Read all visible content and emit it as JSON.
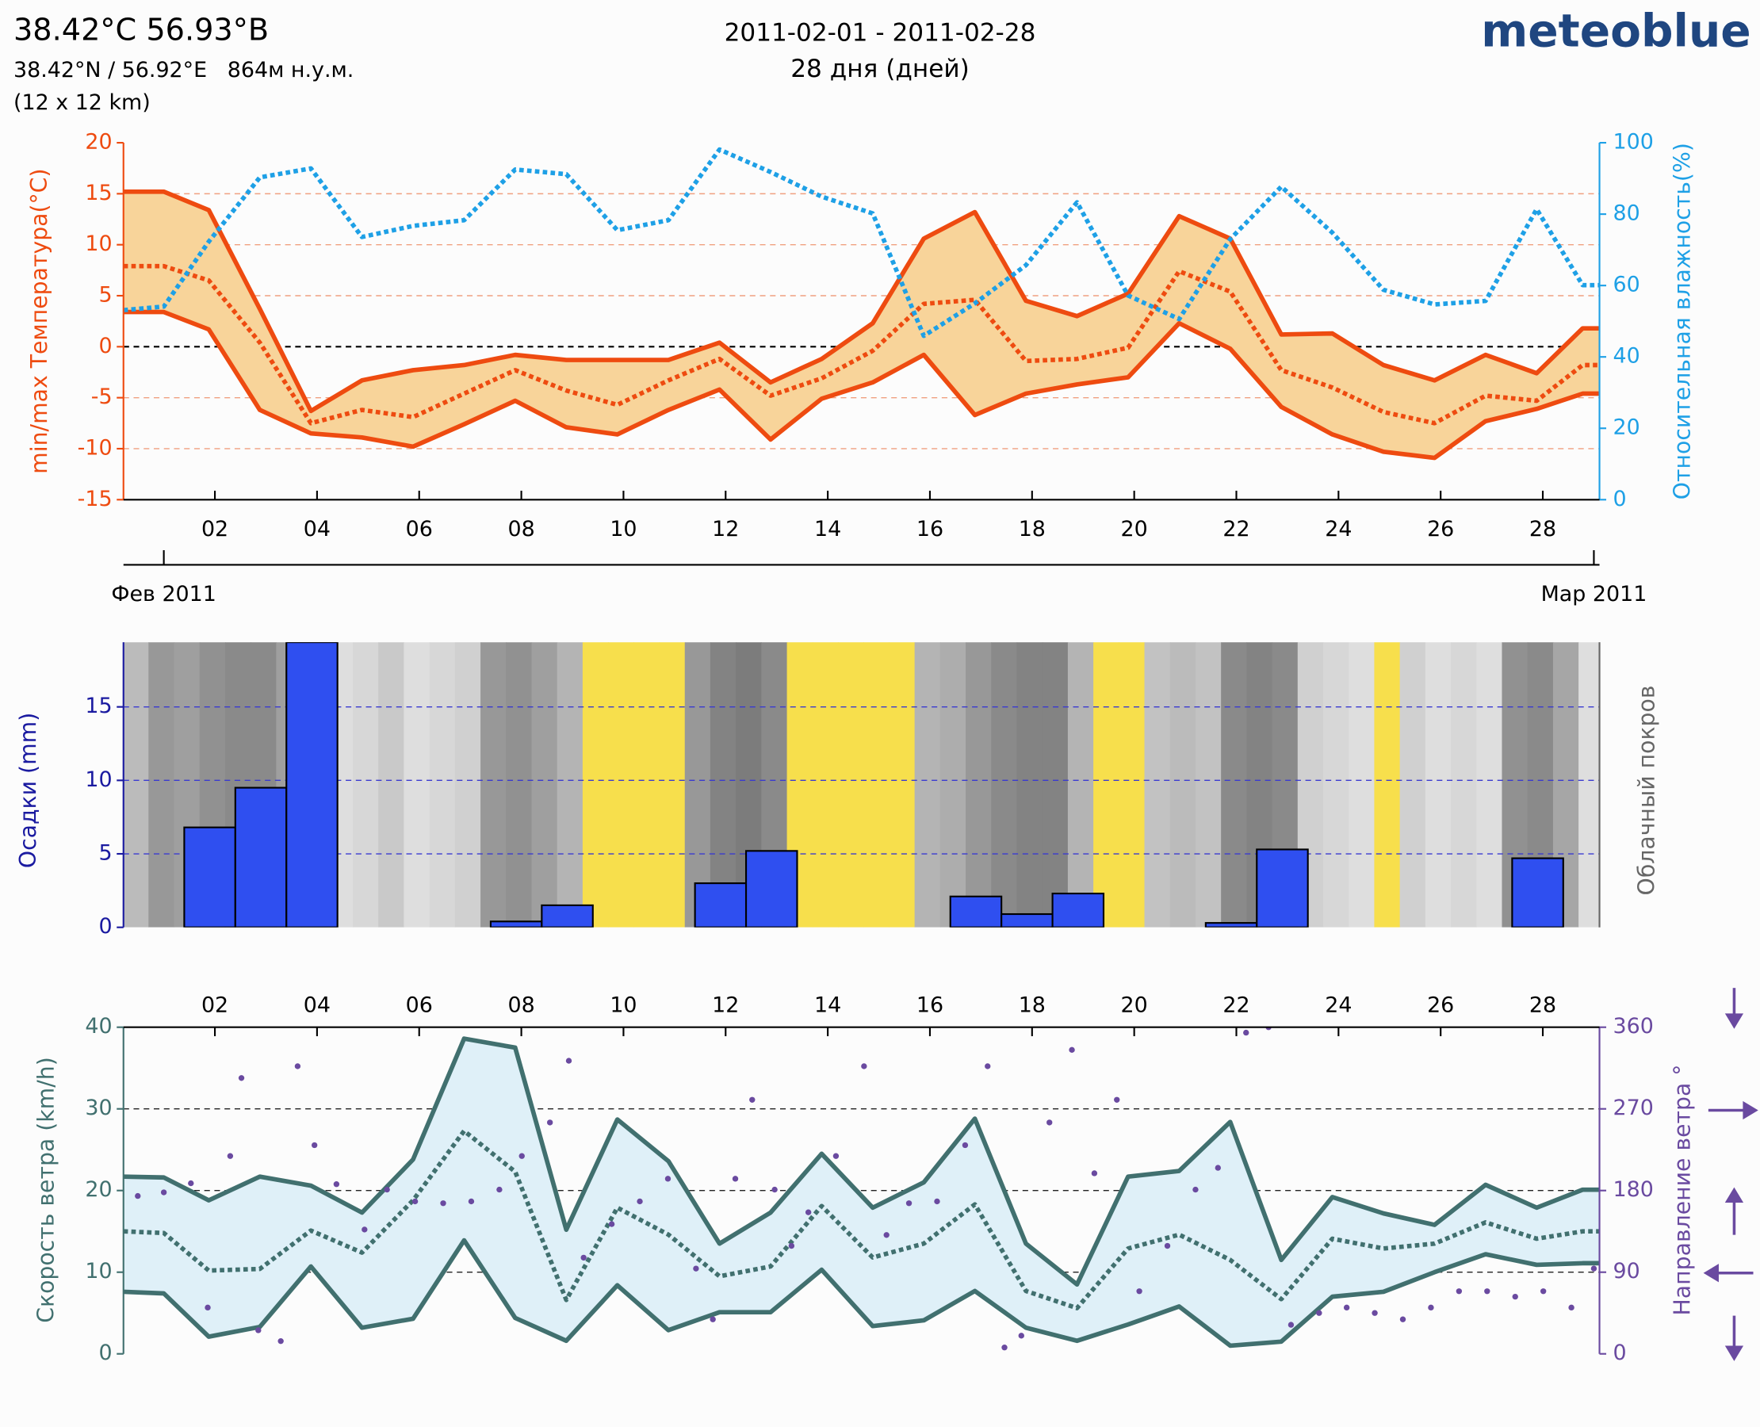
{
  "header": {
    "location": "38.42°C 56.93°B",
    "coordinates": "38.42°N / 56.92°E   864м н.у.м.",
    "resolution": "(12 x 12 km)",
    "period": "2011-02-01 - 2011-02-28",
    "duration": "28 дня (дней)",
    "brand": "meteoblue"
  },
  "chart_data": [
    {
      "type": "line",
      "ylabel": "min/max Температура(°C)",
      "y2label": "Относительная влажность(%)",
      "x": [
        0.21,
        1,
        1.88,
        2.88,
        3.88,
        4.88,
        5.88,
        6.88,
        7.88,
        8.88,
        9.88,
        10.88,
        11.88,
        12.88,
        13.88,
        14.88,
        15.88,
        16.88,
        17.88,
        18.88,
        19.88,
        20.88,
        21.88,
        22.88,
        23.88,
        24.88,
        25.88,
        26.88,
        27.88,
        28.78,
        29.11
      ],
      "xlim": [
        0.21,
        29.11
      ],
      "xticks": [
        {
          "value": 2,
          "label": "02"
        },
        {
          "value": 4,
          "label": "04"
        },
        {
          "value": 6,
          "label": "06"
        },
        {
          "value": 8,
          "label": "08"
        },
        10,
        12,
        14,
        16,
        18,
        20,
        22,
        24,
        26,
        28
      ],
      "month_ticks": [
        {
          "value": 1,
          "label": "Фев 2011"
        },
        {
          "value": 29,
          "label": "Мар 2011"
        }
      ],
      "ylim": [
        -15,
        20
      ],
      "yticks": [
        -15,
        -10,
        -5,
        0,
        5,
        10,
        15,
        20
      ],
      "y2lim": [
        0,
        100
      ],
      "y2ticks": [
        0,
        20,
        40,
        60,
        80,
        100
      ],
      "grid": true,
      "grid_color": "#f0a080",
      "fill_between": "#f8d49a",
      "series": [
        {
          "color": "#ee4b10",
          "style": "solid",
          "values": [
            15.2,
            15.2,
            13.4,
            3.7,
            -6.3,
            -3.3,
            -2.3,
            -1.8,
            -0.8,
            -1.3,
            -1.3,
            -1.3,
            0.4,
            -3.5,
            -1.2,
            2.3,
            10.6,
            13.2,
            4.5,
            3,
            5.2,
            12.8,
            10.6,
            1.2,
            1.3,
            -1.8,
            -3.3,
            -0.8,
            -2.6,
            1.8,
            1.8
          ]
        },
        {
          "color": "#ee4b10",
          "style": "solid",
          "values": [
            3.4,
            3.4,
            1.7,
            -6.2,
            -8.5,
            -8.9,
            -9.8,
            -7.6,
            -5.3,
            -7.9,
            -8.6,
            -6.2,
            -4.2,
            -9.1,
            -5.1,
            -3.5,
            -0.8,
            -6.7,
            -4.6,
            -3.7,
            -3,
            2.3,
            -0.2,
            -5.9,
            -8.6,
            -10.3,
            -10.9,
            -7.3,
            -6.1,
            -4.6,
            -4.6
          ]
        },
        {
          "color": "#ee4b10",
          "style": "dotted",
          "values": [
            7.9,
            7.9,
            6.5,
            0.4,
            -7.5,
            -6.2,
            -6.9,
            -4.6,
            -2.3,
            -4.3,
            -5.7,
            -3.3,
            -1.2,
            -4.8,
            -3.1,
            -0.4,
            4.2,
            4.6,
            -1.4,
            -1.2,
            -0.1,
            7.4,
            5.4,
            -2.3,
            -4,
            -6.4,
            -7.5,
            -4.8,
            -5.3,
            -1.8,
            -1.8
          ]
        },
        {
          "color": "#1ea0e6",
          "style": "dotted",
          "axis": "y2",
          "values": [
            53.1,
            54.1,
            72.3,
            90.3,
            92.8,
            73.6,
            76.7,
            78.3,
            92.5,
            91.2,
            75.5,
            78.3,
            98.1,
            91.8,
            84.9,
            80.2,
            45.9,
            55,
            65.7,
            83.3,
            57.2,
            50.6,
            73,
            87.7,
            74.8,
            58.8,
            54.7,
            55.7,
            81.4,
            60.1,
            60.1
          ]
        }
      ]
    },
    {
      "type": "histogram",
      "ylabel": "Осадки (mm)",
      "y2label": "Облачный покров",
      "bins": [
        0.4,
        1.4,
        2.4,
        3.4,
        4.4,
        5.4,
        6.4,
        7.4,
        8.4,
        9.4,
        10.4,
        11.4,
        12.4,
        13.4,
        14.4,
        15.4,
        16.4,
        17.4,
        18.4,
        19.4,
        20.4,
        21.4,
        22.4,
        23.4,
        24.4,
        25.4,
        26.4,
        27.4,
        28.4
      ],
      "values": [
        0,
        6.8,
        9.5,
        19.4,
        0,
        0,
        0,
        0.4,
        1.5,
        0,
        0,
        3,
        5.2,
        0,
        0,
        0,
        2.1,
        0.9,
        2.3,
        0,
        0,
        0.3,
        5.3,
        0,
        0,
        0,
        0,
        4.7
      ],
      "color": "#2f4ff0",
      "xlim": [
        0.21,
        29.11
      ],
      "ylim": [
        0,
        19.4
      ],
      "yticks": [
        0,
        5,
        10,
        15
      ],
      "grid": true,
      "grid_color": "#3a3ad0",
      "cloud_cover": {
        "bins": [
          0.2,
          0.7,
          1.2,
          1.7,
          2.2,
          2.7,
          3.2,
          3.7,
          4.2,
          4.7,
          5.2,
          5.7,
          6.2,
          6.7,
          7.2,
          7.7,
          8.2,
          8.7,
          9.2,
          9.7,
          10.2,
          10.7,
          11.2,
          11.7,
          12.2,
          12.7,
          13.2,
          13.7,
          14.2,
          14.7,
          15.2,
          15.7,
          16.2,
          16.7,
          17.2,
          17.7,
          18.2,
          18.7,
          19.2,
          19.7,
          20.2,
          20.7,
          21.2,
          21.7,
          22.2,
          22.7,
          23.2,
          23.7,
          24.2,
          24.7,
          25.2,
          25.7,
          26.2,
          26.7,
          27.2,
          27.7,
          28.2,
          28.7,
          29.2
        ],
        "values": [
          35,
          60,
          55,
          65,
          70,
          70,
          55,
          40,
          10,
          15,
          25,
          10,
          15,
          20,
          60,
          65,
          55,
          40,
          0,
          0,
          0,
          0,
          60,
          75,
          80,
          70,
          0,
          0,
          0,
          0,
          5,
          40,
          45,
          60,
          70,
          75,
          75,
          40,
          5,
          5,
          30,
          35,
          30,
          70,
          75,
          70,
          20,
          15,
          10,
          5,
          20,
          10,
          15,
          10,
          65,
          70,
          50,
          10
        ],
        "clear_color": "#f7df4c"
      }
    },
    {
      "type": "line",
      "ylabel": "Скорость ветра (km/h)",
      "y2label": "Направление ветра °",
      "x": [
        0.21,
        1,
        1.88,
        2.88,
        3.88,
        4.88,
        5.88,
        6.88,
        7.88,
        8.88,
        9.88,
        10.88,
        11.88,
        12.88,
        13.88,
        14.88,
        15.88,
        16.88,
        17.88,
        18.88,
        19.88,
        20.88,
        21.88,
        22.88,
        23.88,
        24.88,
        25.88,
        26.88,
        27.88,
        28.78,
        29.11
      ],
      "xlim": [
        0.21,
        29.11
      ],
      "xticks": [
        {
          "value": 2,
          "label": "02"
        },
        {
          "value": 4,
          "label": "04"
        },
        {
          "value": 6,
          "label": "06"
        },
        {
          "value": 8,
          "label": "08"
        },
        10,
        12,
        14,
        16,
        18,
        20,
        22,
        24,
        26,
        28
      ],
      "ylim": [
        0,
        40
      ],
      "yticks": [
        0,
        10,
        20,
        30,
        40
      ],
      "y2lim": [
        0,
        360
      ],
      "y2ticks": [
        0,
        90,
        180,
        270,
        360
      ],
      "grid": true,
      "grid_color": "#222222",
      "fill_between": "#dff0f8",
      "series": [
        {
          "color": "#41706f",
          "style": "solid",
          "values": [
            21.7,
            21.6,
            18.8,
            21.7,
            20.6,
            17.3,
            23.8,
            38.6,
            37.5,
            15.2,
            28.7,
            23.6,
            13.5,
            17.3,
            24.5,
            17.9,
            21,
            28.8,
            13.5,
            8.5,
            21.7,
            22.4,
            28.4,
            11.5,
            19.2,
            17.2,
            15.8,
            20.7,
            17.9,
            20.1,
            20.1
          ]
        },
        {
          "color": "#41706f",
          "style": "solid",
          "values": [
            7.6,
            7.4,
            2.1,
            3.3,
            10.7,
            3.2,
            4.3,
            13.9,
            4.4,
            1.6,
            8.4,
            2.9,
            5.1,
            5.1,
            10.3,
            3.4,
            4.1,
            7.7,
            3.2,
            1.6,
            3.6,
            5.8,
            1,
            1.5,
            7,
            7.6,
            10,
            12.2,
            10.9,
            11.1,
            11.1
          ]
        },
        {
          "color": "#41706f",
          "style": "dotted",
          "values": [
            15,
            14.8,
            10.2,
            10.4,
            15.1,
            12.4,
            18.8,
            27.3,
            22.3,
            6.6,
            17.9,
            14.6,
            9.5,
            10.7,
            18.1,
            11.8,
            13.5,
            18.3,
            7.7,
            5.6,
            12.9,
            14.6,
            11.5,
            6.7,
            14.1,
            12.9,
            13.5,
            16.1,
            14.1,
            15,
            15
          ]
        },
        {
          "color": "#6a4aa0",
          "style": "dots",
          "axis": "y2",
          "x": [
            0.49,
            1,
            1.53,
            1.86,
            2.3,
            2.52,
            2.85,
            3.29,
            3.62,
            3.95,
            4.38,
            4.93,
            5.37,
            5.92,
            6.47,
            7.02,
            7.57,
            8.01,
            8.56,
            8.93,
            9.22,
            9.77,
            10.32,
            10.87,
            11.42,
            11.75,
            12.19,
            12.52,
            12.96,
            13.29,
            13.62,
            14.16,
            14.71,
            15.15,
            15.59,
            16.14,
            16.69,
            17.13,
            17.46,
            17.79,
            18.34,
            18.78,
            19.22,
            19.66,
            20.1,
            20.65,
            21.2,
            21.64,
            22.19,
            22.63,
            23.07,
            23.62,
            24.16,
            24.71,
            25.26,
            25.81,
            26.36,
            26.91,
            27.46,
            28.01,
            28.56,
            29
          ],
          "values": [
            174,
            178,
            188,
            51,
            218,
            304,
            26,
            14,
            317,
            230,
            187,
            137,
            181,
            168,
            166,
            168,
            181,
            218,
            255,
            323,
            106,
            143,
            168,
            193,
            94,
            38,
            193,
            280,
            181,
            119,
            156,
            218,
            317,
            131,
            166,
            168,
            230,
            317,
            7,
            20,
            255,
            335,
            199,
            280,
            69,
            119,
            181,
            205,
            354,
            360,
            32,
            45,
            51,
            45,
            38,
            51,
            69,
            69,
            63,
            69,
            51,
            94
          ]
        }
      ]
    }
  ]
}
